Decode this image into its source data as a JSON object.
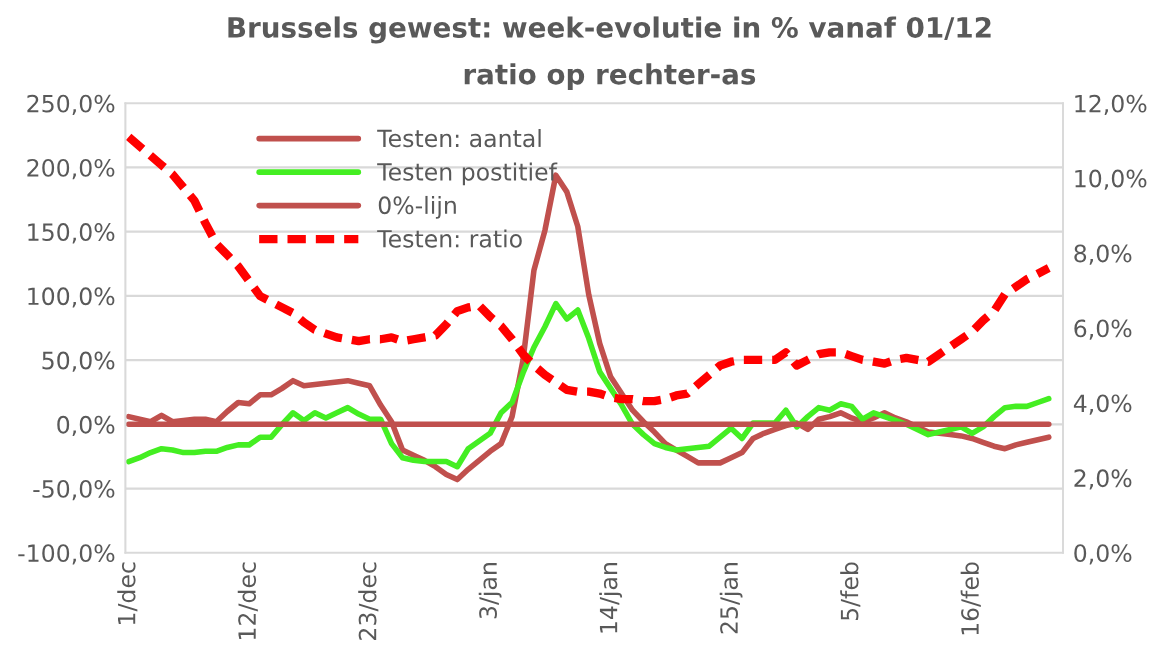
{
  "chart_data": {
    "type": "line",
    "title": "Brussels gewest: week-evolutie in % vanaf 01/12",
    "subtitle": "ratio op rechter-as",
    "categories": [
      "1/dec",
      null,
      null,
      null,
      null,
      null,
      null,
      null,
      null,
      null,
      null,
      "12/dec",
      null,
      null,
      null,
      null,
      null,
      null,
      null,
      null,
      null,
      null,
      "23/dec",
      null,
      null,
      null,
      null,
      null,
      null,
      null,
      null,
      null,
      null,
      "3/jan",
      null,
      null,
      null,
      null,
      null,
      null,
      null,
      null,
      null,
      null,
      "14/jan",
      null,
      null,
      null,
      null,
      null,
      null,
      null,
      null,
      null,
      null,
      "25/jan",
      null,
      null,
      null,
      null,
      null,
      null,
      null,
      null,
      null,
      null,
      "5/feb",
      null,
      null,
      null,
      null,
      null,
      null,
      null,
      null,
      null,
      null,
      "16/feb",
      null,
      null,
      null,
      null,
      null,
      null,
      null
    ],
    "ylim": [
      -100,
      250
    ],
    "yticks": [
      {
        "value": -100,
        "label": "-100,0%"
      },
      {
        "value": -50,
        "label": "-50,0%"
      },
      {
        "value": 0,
        "label": "0,0%"
      },
      {
        "value": 50,
        "label": "50,0%"
      },
      {
        "value": 100,
        "label": "100,0%"
      },
      {
        "value": 150,
        "label": "150,0%"
      },
      {
        "value": 200,
        "label": "200,0%"
      },
      {
        "value": 250,
        "label": "250,0%"
      }
    ],
    "y2lim": [
      0,
      12
    ],
    "y2ticks": [
      {
        "value": 0,
        "label": "0,0%"
      },
      {
        "value": 2,
        "label": "2,0%"
      },
      {
        "value": 4,
        "label": "4,0%"
      },
      {
        "value": 6,
        "label": "6,0%"
      },
      {
        "value": 8,
        "label": "8,0%"
      },
      {
        "value": 10,
        "label": "10,0%"
      },
      {
        "value": 12,
        "label": "12,0%"
      }
    ],
    "grid": "y",
    "legend": "top left",
    "series": [
      {
        "name": "Testen: aantal",
        "color": "#c0504d",
        "line_style": "solid",
        "values": [
          6,
          4,
          2,
          7,
          2,
          3,
          4,
          4,
          2,
          10,
          17,
          16,
          23,
          23,
          28,
          34,
          30,
          31,
          32,
          33,
          34,
          32,
          30,
          15,
          2,
          -20,
          -24,
          -28,
          -33,
          -39,
          -43,
          -35,
          -28,
          -21,
          -15,
          6,
          50,
          120,
          151,
          194,
          181,
          154,
          101,
          63,
          37,
          24,
          11,
          2,
          -6,
          -15,
          -20,
          -25,
          -30,
          -30,
          -30,
          -26,
          -22,
          -11,
          -7,
          -4,
          -1,
          1,
          -4,
          4,
          6,
          9,
          5,
          2,
          5,
          9,
          5,
          2,
          -2,
          -6,
          -7,
          -8,
          -9,
          -11,
          -14,
          -17,
          -19,
          -16,
          -14,
          -12,
          -10
        ]
      },
      {
        "name": "Testen postitief",
        "color": "#44ee22",
        "line_style": "solid",
        "values": [
          -29,
          -26,
          -22,
          -19,
          -20,
          -22,
          -22,
          -21,
          -21,
          -18,
          -16,
          -16,
          -10,
          -10,
          0,
          9,
          3,
          9,
          5,
          9,
          13,
          8,
          4,
          4,
          -15,
          -26,
          -28,
          -29,
          -29,
          -29,
          -33,
          -19,
          -13,
          -7,
          9,
          17,
          40,
          60,
          76,
          94,
          82,
          89,
          67,
          41,
          28,
          15,
          0,
          -8,
          -15,
          -18,
          -20,
          -19,
          -18,
          -17,
          -10,
          -3,
          -11,
          1,
          1,
          1,
          11,
          -2,
          6,
          13,
          11,
          16,
          14,
          4,
          9,
          6,
          3,
          0,
          -4,
          -8,
          -6,
          -4,
          -2,
          -7,
          -2,
          6,
          13,
          14,
          14,
          17,
          20
        ]
      },
      {
        "name": "0%-lijn",
        "color": "#c0504d",
        "line_style": "solid",
        "values": [
          0,
          0,
          0,
          0,
          0,
          0,
          0,
          0,
          0,
          0,
          0,
          0,
          0,
          0,
          0,
          0,
          0,
          0,
          0,
          0,
          0,
          0,
          0,
          0,
          0,
          0,
          0,
          0,
          0,
          0,
          0,
          0,
          0,
          0,
          0,
          0,
          0,
          0,
          0,
          0,
          0,
          0,
          0,
          0,
          0,
          0,
          0,
          0,
          0,
          0,
          0,
          0,
          0,
          0,
          0,
          0,
          0,
          0,
          0,
          0,
          0,
          0,
          0,
          0,
          0,
          0,
          0,
          0,
          0,
          0,
          0,
          0,
          0,
          0,
          0,
          0,
          0,
          0,
          0,
          0,
          0,
          0,
          0,
          0,
          0
        ]
      },
      {
        "name": "Testen: ratio",
        "color": "#ff0000",
        "line_style": "dashed",
        "axis": "y2",
        "values": [
          11.1,
          10.85,
          10.6,
          10.35,
          10.1,
          9.75,
          9.4,
          8.8,
          8.25,
          7.95,
          7.65,
          7.25,
          6.85,
          6.7,
          6.55,
          6.4,
          6.15,
          5.95,
          5.85,
          5.75,
          5.7,
          5.65,
          5.7,
          5.7,
          5.75,
          5.65,
          5.7,
          5.75,
          5.8,
          6.1,
          6.45,
          6.55,
          6.6,
          6.3,
          6.05,
          5.7,
          5.3,
          5.0,
          4.75,
          4.55,
          4.35,
          4.3,
          4.3,
          4.25,
          4.15,
          4.1,
          4.1,
          4.05,
          4.05,
          4.1,
          4.2,
          4.25,
          4.5,
          4.75,
          5.0,
          5.1,
          5.15,
          5.15,
          5.15,
          5.15,
          5.35,
          5.0,
          5.15,
          5.3,
          5.35,
          5.35,
          5.25,
          5.15,
          5.1,
          5.05,
          5.15,
          5.2,
          5.15,
          5.1,
          5.3,
          5.5,
          5.7,
          5.9,
          6.2,
          6.45,
          6.9,
          7.1,
          7.3,
          7.45,
          7.6
        ]
      }
    ]
  }
}
